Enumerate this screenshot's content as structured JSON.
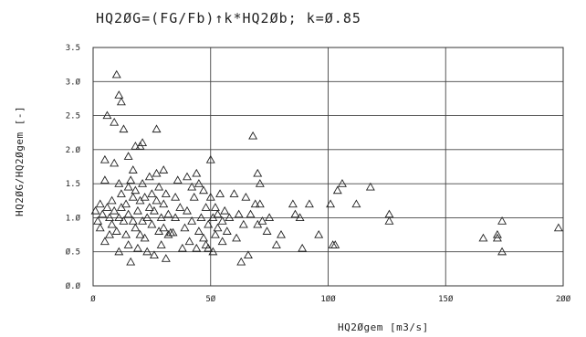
{
  "chart_data": {
    "type": "scatter",
    "title": "HQ2ØG=(FG/Fb)↑k*HQ2Øb; k=Ø.85",
    "xlabel": "HQ2Øgem [m3/s]",
    "ylabel": "HQ2ØG/HQ2Øgem [-]",
    "xlim": [
      0,
      200
    ],
    "ylim": [
      0,
      3.5
    ],
    "x_ticks": [
      0,
      50,
      100,
      150,
      200
    ],
    "x_tick_labels": [
      "Ø",
      "5Ø",
      "1ØØ",
      "15Ø",
      "2ØØ"
    ],
    "y_ticks": [
      0,
      0.5,
      1.0,
      1.5,
      2.0,
      2.5,
      3.0,
      3.5
    ],
    "y_tick_labels": [
      "Ø.Ø",
      "Ø.5",
      "1.Ø",
      "1.5",
      "2.Ø",
      "2.5",
      "3.Ø",
      "3.5"
    ],
    "grid": true,
    "marker": "triangle",
    "points": [
      [
        1,
        1.1
      ],
      [
        2,
        0.95
      ],
      [
        3,
        1.2
      ],
      [
        3,
        0.85
      ],
      [
        4,
        1.05
      ],
      [
        5,
        0.65
      ],
      [
        5,
        1.55
      ],
      [
        5,
        1.85
      ],
      [
        6,
        2.5
      ],
      [
        6,
        1.15
      ],
      [
        7,
        0.75
      ],
      [
        7,
        1.0
      ],
      [
        8,
        1.25
      ],
      [
        8,
        0.9
      ],
      [
        9,
        1.8
      ],
      [
        9,
        2.4
      ],
      [
        9,
        1.1
      ],
      [
        10,
        3.1
      ],
      [
        10,
        0.8
      ],
      [
        11,
        2.8
      ],
      [
        11,
        1.5
      ],
      [
        11,
        1.0
      ],
      [
        11,
        0.5
      ],
      [
        12,
        2.7
      ],
      [
        12,
        1.35
      ],
      [
        12,
        1.15
      ],
      [
        13,
        2.3
      ],
      [
        13,
        0.95
      ],
      [
        14,
        1.2
      ],
      [
        14,
        0.75
      ],
      [
        15,
        1.9
      ],
      [
        15,
        1.45
      ],
      [
        15,
        1.05
      ],
      [
        15,
        0.6
      ],
      [
        16,
        0.35
      ],
      [
        16,
        1.55
      ],
      [
        17,
        1.7
      ],
      [
        17,
        1.3
      ],
      [
        17,
        0.95
      ],
      [
        18,
        2.05
      ],
      [
        18,
        1.4
      ],
      [
        18,
        0.85
      ],
      [
        19,
        1.1
      ],
      [
        19,
        0.55
      ],
      [
        20,
        2.05
      ],
      [
        20,
        1.25
      ],
      [
        20,
        0.75
      ],
      [
        21,
        2.1
      ],
      [
        21,
        1.5
      ],
      [
        21,
        0.95
      ],
      [
        22,
        0.7
      ],
      [
        22,
        1.3
      ],
      [
        23,
        1.0
      ],
      [
        23,
        0.5
      ],
      [
        24,
        1.6
      ],
      [
        24,
        1.15
      ],
      [
        25,
        1.35
      ],
      [
        25,
        0.9
      ],
      [
        26,
        0.45
      ],
      [
        26,
        1.1
      ],
      [
        27,
        2.3
      ],
      [
        27,
        1.65
      ],
      [
        27,
        1.25
      ],
      [
        28,
        0.8
      ],
      [
        28,
        1.45
      ],
      [
        29,
        1.0
      ],
      [
        29,
        0.6
      ],
      [
        30,
        1.7
      ],
      [
        30,
        1.2
      ],
      [
        30,
        0.85
      ],
      [
        31,
        1.35
      ],
      [
        31,
        0.4
      ],
      [
        32,
        1.05
      ],
      [
        32,
        0.75
      ],
      [
        33,
        0.78
      ],
      [
        34,
        0.78
      ],
      [
        35,
        1.3
      ],
      [
        35,
        1.0
      ],
      [
        36,
        1.55
      ],
      [
        37,
        1.15
      ],
      [
        38,
        0.55
      ],
      [
        39,
        0.85
      ],
      [
        40,
        1.1
      ],
      [
        40,
        1.6
      ],
      [
        41,
        0.65
      ],
      [
        42,
        0.95
      ],
      [
        42,
        1.45
      ],
      [
        43,
        1.3
      ],
      [
        44,
        1.65
      ],
      [
        44,
        0.55
      ],
      [
        45,
        1.5
      ],
      [
        45,
        0.8
      ],
      [
        46,
        1.0
      ],
      [
        47,
        1.4
      ],
      [
        47,
        0.7
      ],
      [
        48,
        1.15
      ],
      [
        48,
        0.6
      ],
      [
        49,
        0.9
      ],
      [
        49,
        0.55
      ],
      [
        50,
        1.85
      ],
      [
        50,
        1.3
      ],
      [
        51,
        1.0
      ],
      [
        51,
        0.5
      ],
      [
        52,
        1.15
      ],
      [
        52,
        0.75
      ],
      [
        53,
        1.05
      ],
      [
        53,
        0.85
      ],
      [
        54,
        1.35
      ],
      [
        55,
        0.95
      ],
      [
        55,
        0.65
      ],
      [
        56,
        1.1
      ],
      [
        57,
        0.8
      ],
      [
        58,
        1.0
      ],
      [
        60,
        1.35
      ],
      [
        61,
        0.7
      ],
      [
        62,
        1.05
      ],
      [
        63,
        0.35
      ],
      [
        64,
        0.9
      ],
      [
        65,
        1.3
      ],
      [
        66,
        0.45
      ],
      [
        67,
        1.05
      ],
      [
        68,
        2.2
      ],
      [
        69,
        1.2
      ],
      [
        70,
        0.9
      ],
      [
        70,
        1.65
      ],
      [
        71,
        1.5
      ],
      [
        71,
        1.2
      ],
      [
        72,
        0.95
      ],
      [
        74,
        0.8
      ],
      [
        75,
        1.0
      ],
      [
        78,
        0.6
      ],
      [
        80,
        0.75
      ],
      [
        85,
        1.2
      ],
      [
        86,
        1.05
      ],
      [
        88,
        1.0
      ],
      [
        89,
        0.55
      ],
      [
        92,
        1.2
      ],
      [
        96,
        0.75
      ],
      [
        101,
        1.2
      ],
      [
        102,
        0.6
      ],
      [
        103,
        0.6
      ],
      [
        104,
        1.4
      ],
      [
        106,
        1.5
      ],
      [
        112,
        1.2
      ],
      [
        118,
        1.45
      ],
      [
        126,
        0.95
      ],
      [
        126,
        1.05
      ],
      [
        166,
        0.7
      ],
      [
        172,
        0.7
      ],
      [
        172,
        0.75
      ],
      [
        174,
        0.95
      ],
      [
        174,
        0.5
      ],
      [
        198,
        0.85
      ]
    ]
  }
}
